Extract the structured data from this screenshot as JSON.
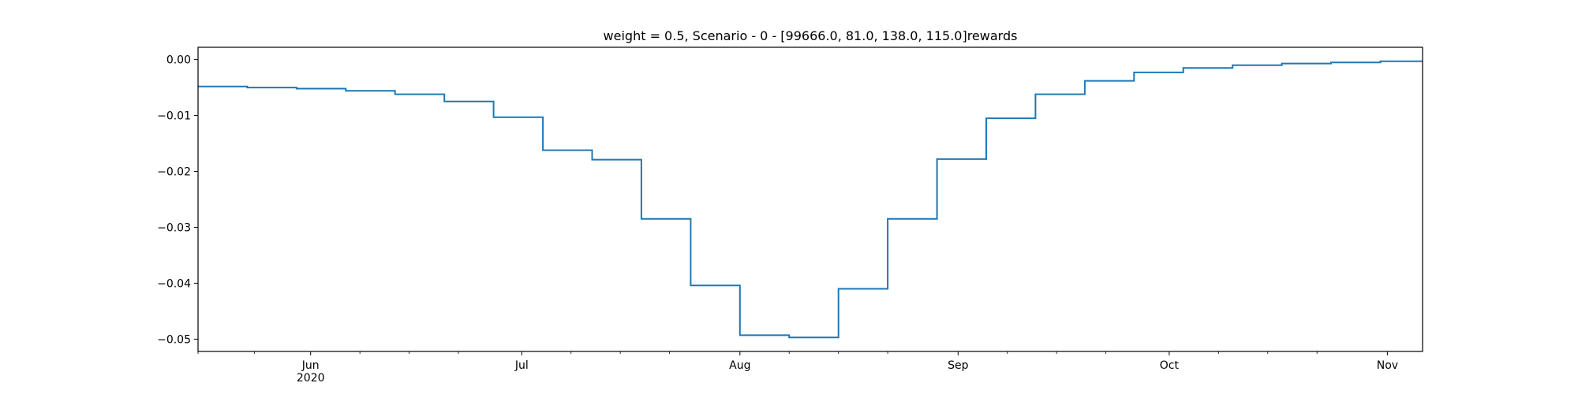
{
  "chart_data": {
    "type": "line",
    "step": true,
    "title": "weight = 0.5, Scenario - 0 - [99666.0, 81.0, 138.0, 115.0]rewards",
    "xlabel": "",
    "ylabel": "",
    "xlim": [
      "2020-05-16",
      "2020-11-06"
    ],
    "ylim": [
      -0.0522,
      0.0022
    ],
    "grid": false,
    "color": "#1f77b4",
    "y_ticks": [
      0.0,
      -0.01,
      -0.02,
      -0.03,
      -0.04,
      -0.05
    ],
    "y_tick_labels": [
      "0.00",
      "−0.01",
      "−0.02",
      "−0.03",
      "−0.04",
      "−0.05"
    ],
    "x_ticks": [
      {
        "date": "2020-06-01",
        "label": "Jun",
        "sublabel": "2020"
      },
      {
        "date": "2020-07-01",
        "label": "Jul",
        "sublabel": ""
      },
      {
        "date": "2020-08-01",
        "label": "Aug",
        "sublabel": ""
      },
      {
        "date": "2020-09-01",
        "label": "Sep",
        "sublabel": ""
      },
      {
        "date": "2020-10-01",
        "label": "Oct",
        "sublabel": ""
      },
      {
        "date": "2020-11-01",
        "label": "Nov",
        "sublabel": ""
      }
    ],
    "minor_x_ticks": [
      "2020-05-16",
      "2020-05-24",
      "2020-06-08",
      "2020-06-15",
      "2020-06-22",
      "2020-07-08",
      "2020-07-15",
      "2020-07-22",
      "2020-08-08",
      "2020-08-15",
      "2020-08-22",
      "2020-09-08",
      "2020-09-15",
      "2020-09-22",
      "2020-10-08",
      "2020-10-15",
      "2020-10-22"
    ],
    "x": [
      "2020-05-16",
      "2020-05-23",
      "2020-05-30",
      "2020-06-06",
      "2020-06-13",
      "2020-06-20",
      "2020-06-27",
      "2020-07-04",
      "2020-07-11",
      "2020-07-18",
      "2020-07-25",
      "2020-08-01",
      "2020-08-08",
      "2020-08-15",
      "2020-08-22",
      "2020-08-29",
      "2020-09-05",
      "2020-09-12",
      "2020-09-19",
      "2020-09-26",
      "2020-10-03",
      "2020-10-10",
      "2020-10-17",
      "2020-10-24",
      "2020-10-31",
      "2020-11-06"
    ],
    "values": [
      -0.0048,
      -0.005,
      -0.0052,
      -0.0056,
      -0.0062,
      -0.0075,
      -0.0103,
      -0.0162,
      -0.0179,
      -0.0285,
      -0.0404,
      -0.0493,
      -0.0497,
      -0.041,
      -0.0285,
      -0.0178,
      -0.0105,
      -0.0062,
      -0.0038,
      -0.0023,
      -0.0015,
      -0.001,
      -0.0007,
      -0.0005,
      -0.0003,
      -0.0003
    ]
  }
}
